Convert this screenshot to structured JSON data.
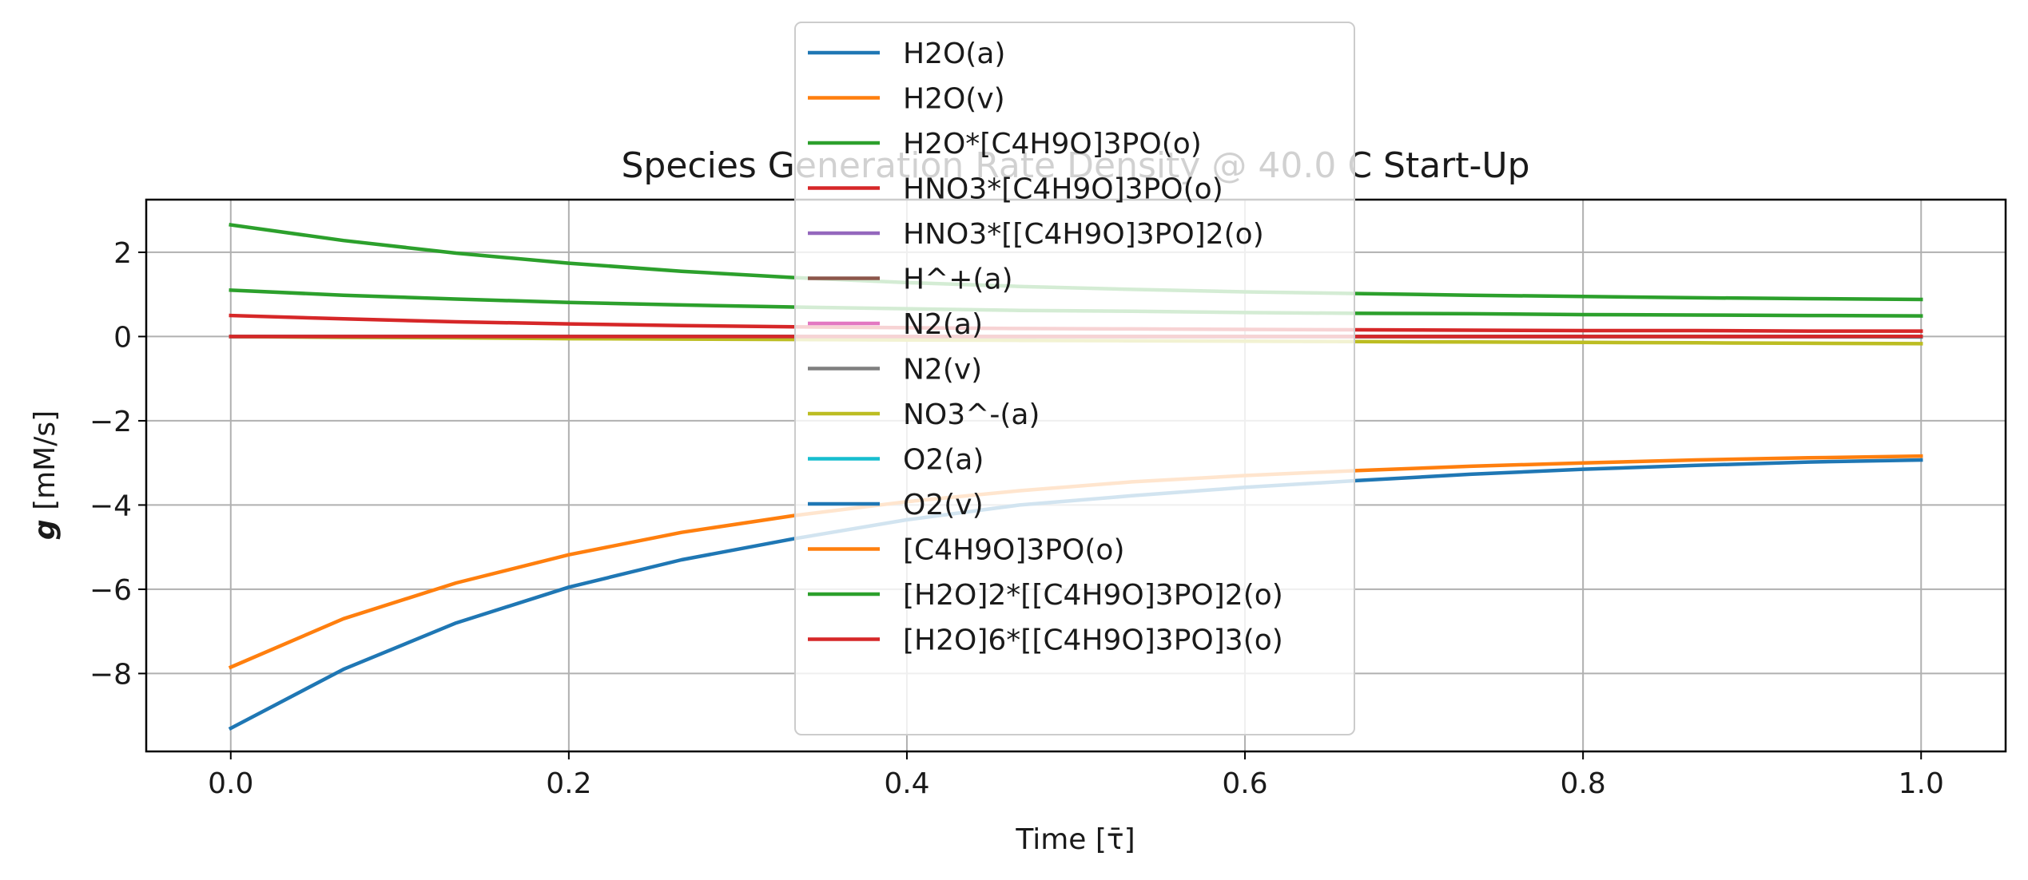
{
  "chart_data": {
    "type": "line",
    "title": "Species Generation Rate Density @ 40.0 C Start-Up",
    "xlabel": "Time [τ̄]",
    "ylabel_symbol": "g",
    "ylabel_unit": " [mM/s]",
    "xlim": [
      -0.05,
      1.05
    ],
    "ylim": [
      -9.85,
      3.25
    ],
    "xticks": [
      0.0,
      0.2,
      0.4,
      0.6,
      0.8,
      1.0
    ],
    "xtick_labels": [
      "0.0",
      "0.2",
      "0.4",
      "0.6",
      "0.8",
      "1.0"
    ],
    "yticks": [
      -8,
      -6,
      -4,
      -2,
      0,
      2
    ],
    "ytick_labels": [
      "−8",
      "−6",
      "−4",
      "−2",
      "0",
      "2"
    ],
    "grid": true,
    "legend_position": "upper-center",
    "x": [
      0.0,
      0.0667,
      0.1333,
      0.2,
      0.2667,
      0.3333,
      0.4,
      0.4667,
      0.5333,
      0.6,
      0.6667,
      0.7333,
      0.8,
      0.8667,
      0.9333,
      1.0
    ],
    "series": [
      {
        "name": "H2O(a)",
        "color": "#1f77b4",
        "values": [
          0,
          0,
          0,
          0,
          0,
          0,
          0,
          0,
          0,
          0,
          0,
          0,
          0,
          0,
          0,
          0
        ]
      },
      {
        "name": "H2O(v)",
        "color": "#ff7f0e",
        "values": [
          0,
          0,
          0,
          0,
          0,
          0,
          0,
          0,
          0,
          0,
          0,
          0,
          0,
          0,
          0,
          0
        ]
      },
      {
        "name": "H2O*[C4H9O]3PO(o)",
        "color": "#2ca02c",
        "values": [
          1.1,
          0.98,
          0.89,
          0.81,
          0.75,
          0.7,
          0.66,
          0.62,
          0.6,
          0.57,
          0.55,
          0.54,
          0.52,
          0.51,
          0.5,
          0.49
        ]
      },
      {
        "name": "HNO3*[C4H9O]3PO(o)",
        "color": "#d62728",
        "values": [
          0.5,
          0.42,
          0.35,
          0.3,
          0.26,
          0.23,
          0.21,
          0.19,
          0.18,
          0.17,
          0.16,
          0.15,
          0.14,
          0.14,
          0.13,
          0.13
        ]
      },
      {
        "name": "HNO3*[[C4H9O]3PO]2(o)",
        "color": "#9467bd",
        "values": [
          0,
          0,
          0,
          0,
          0,
          0,
          0,
          0,
          0,
          0,
          0,
          0,
          0,
          0,
          0,
          0
        ]
      },
      {
        "name": "H^+(a)",
        "color": "#8c564b",
        "values": [
          0,
          0,
          0,
          0,
          0,
          0,
          0,
          0,
          0,
          0,
          0,
          0,
          0,
          0,
          0,
          0
        ]
      },
      {
        "name": "N2(a)",
        "color": "#e377c2",
        "values": [
          0,
          0,
          0,
          0,
          0,
          0,
          0,
          0,
          0,
          0,
          0,
          0,
          0,
          0,
          0,
          0
        ]
      },
      {
        "name": "N2(v)",
        "color": "#7f7f7f",
        "values": [
          0,
          0,
          0,
          0,
          0,
          0,
          0,
          0,
          0,
          0,
          0,
          0,
          0,
          0,
          0,
          0
        ]
      },
      {
        "name": "NO3^-(a)",
        "color": "#bcbd22",
        "values": [
          0,
          -0.02,
          -0.03,
          -0.05,
          -0.06,
          -0.07,
          -0.08,
          -0.09,
          -0.1,
          -0.11,
          -0.12,
          -0.13,
          -0.14,
          -0.15,
          -0.16,
          -0.17
        ]
      },
      {
        "name": "O2(a)",
        "color": "#17becf",
        "values": [
          0,
          0,
          0,
          0,
          0,
          0,
          0,
          0,
          0,
          0,
          0,
          0,
          0,
          0,
          0,
          -0.01
        ]
      },
      {
        "name": "O2(v)",
        "color": "#1f77b4",
        "values": [
          -9.3,
          -7.9,
          -6.8,
          -5.95,
          -5.3,
          -4.8,
          -4.35,
          -4.0,
          -3.78,
          -3.58,
          -3.42,
          -3.27,
          -3.15,
          -3.06,
          -2.98,
          -2.93
        ]
      },
      {
        "name": "[C4H9O]3PO(o)",
        "color": "#ff7f0e",
        "values": [
          -7.85,
          -6.7,
          -5.85,
          -5.18,
          -4.65,
          -4.25,
          -3.92,
          -3.66,
          -3.45,
          -3.3,
          -3.18,
          -3.08,
          -3.0,
          -2.93,
          -2.88,
          -2.84
        ]
      },
      {
        "name": "[H2O]2*[[C4H9O]3PO]2(o)",
        "color": "#2ca02c",
        "values": [
          2.65,
          2.28,
          1.98,
          1.74,
          1.55,
          1.4,
          1.28,
          1.19,
          1.12,
          1.06,
          1.02,
          0.98,
          0.95,
          0.92,
          0.9,
          0.88
        ]
      },
      {
        "name": "[H2O]6*[[C4H9O]3PO]3(o)",
        "color": "#d62728",
        "values": [
          0,
          0,
          0,
          0,
          0,
          0,
          0,
          0,
          0,
          0,
          0,
          0,
          0,
          0,
          0,
          0
        ]
      }
    ]
  }
}
